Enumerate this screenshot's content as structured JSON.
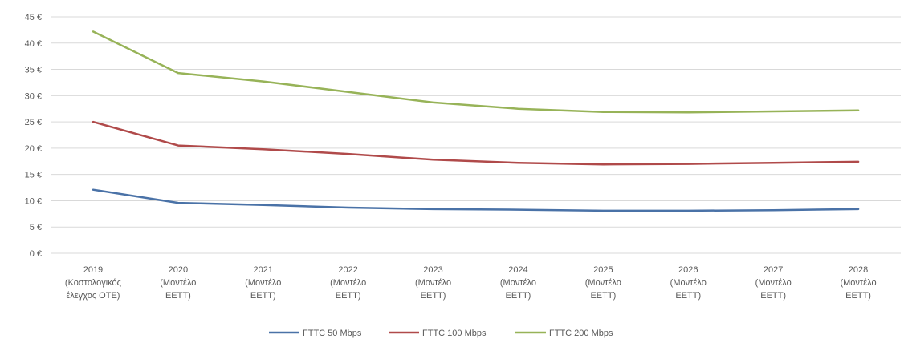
{
  "chart_data": {
    "type": "line",
    "title": "",
    "xlabel": "",
    "ylabel": "",
    "ylim": [
      0,
      45
    ],
    "y_ticks": [
      "0 €",
      "5 €",
      "10 €",
      "15 €",
      "20 €",
      "25 €",
      "30 €",
      "35 €",
      "40 €",
      "45 €"
    ],
    "grid": true,
    "legend_position": "bottom",
    "categories": [
      [
        "2019",
        "(Κοστολογικός",
        "έλεγχος ΟΤΕ)"
      ],
      [
        "2020",
        "(Μοντέλο",
        "ΕΕΤΤ)"
      ],
      [
        "2021",
        "(Μοντέλο",
        "ΕΕΤΤ)"
      ],
      [
        "2022",
        "(Μοντέλο",
        "ΕΕΤΤ)"
      ],
      [
        "2023",
        "(Μοντέλο",
        "ΕΕΤΤ)"
      ],
      [
        "2024",
        "(Μοντέλο",
        "ΕΕΤΤ)"
      ],
      [
        "2025",
        "(Μοντέλο",
        "ΕΕΤΤ)"
      ],
      [
        "2026",
        "(Μοντέλο",
        "ΕΕΤΤ)"
      ],
      [
        "2027",
        "(Μοντέλο",
        "ΕΕΤΤ)"
      ],
      [
        "2028",
        "(Μοντέλο",
        "ΕΕΤΤ)"
      ]
    ],
    "series": [
      {
        "name": "FTTC 50 Mbps",
        "color": "#4a72a7",
        "values": [
          12.1,
          9.6,
          9.2,
          8.7,
          8.4,
          8.3,
          8.1,
          8.1,
          8.2,
          8.4
        ]
      },
      {
        "name": "FTTC 100 Mbps",
        "color": "#b04a4a",
        "values": [
          25.0,
          20.5,
          19.8,
          18.9,
          17.8,
          17.2,
          16.9,
          17.0,
          17.2,
          17.4
        ]
      },
      {
        "name": "FTTC 200 Mbps",
        "color": "#97b358",
        "values": [
          42.2,
          34.3,
          32.7,
          30.7,
          28.7,
          27.5,
          26.9,
          26.8,
          27.0,
          27.2
        ]
      }
    ]
  }
}
